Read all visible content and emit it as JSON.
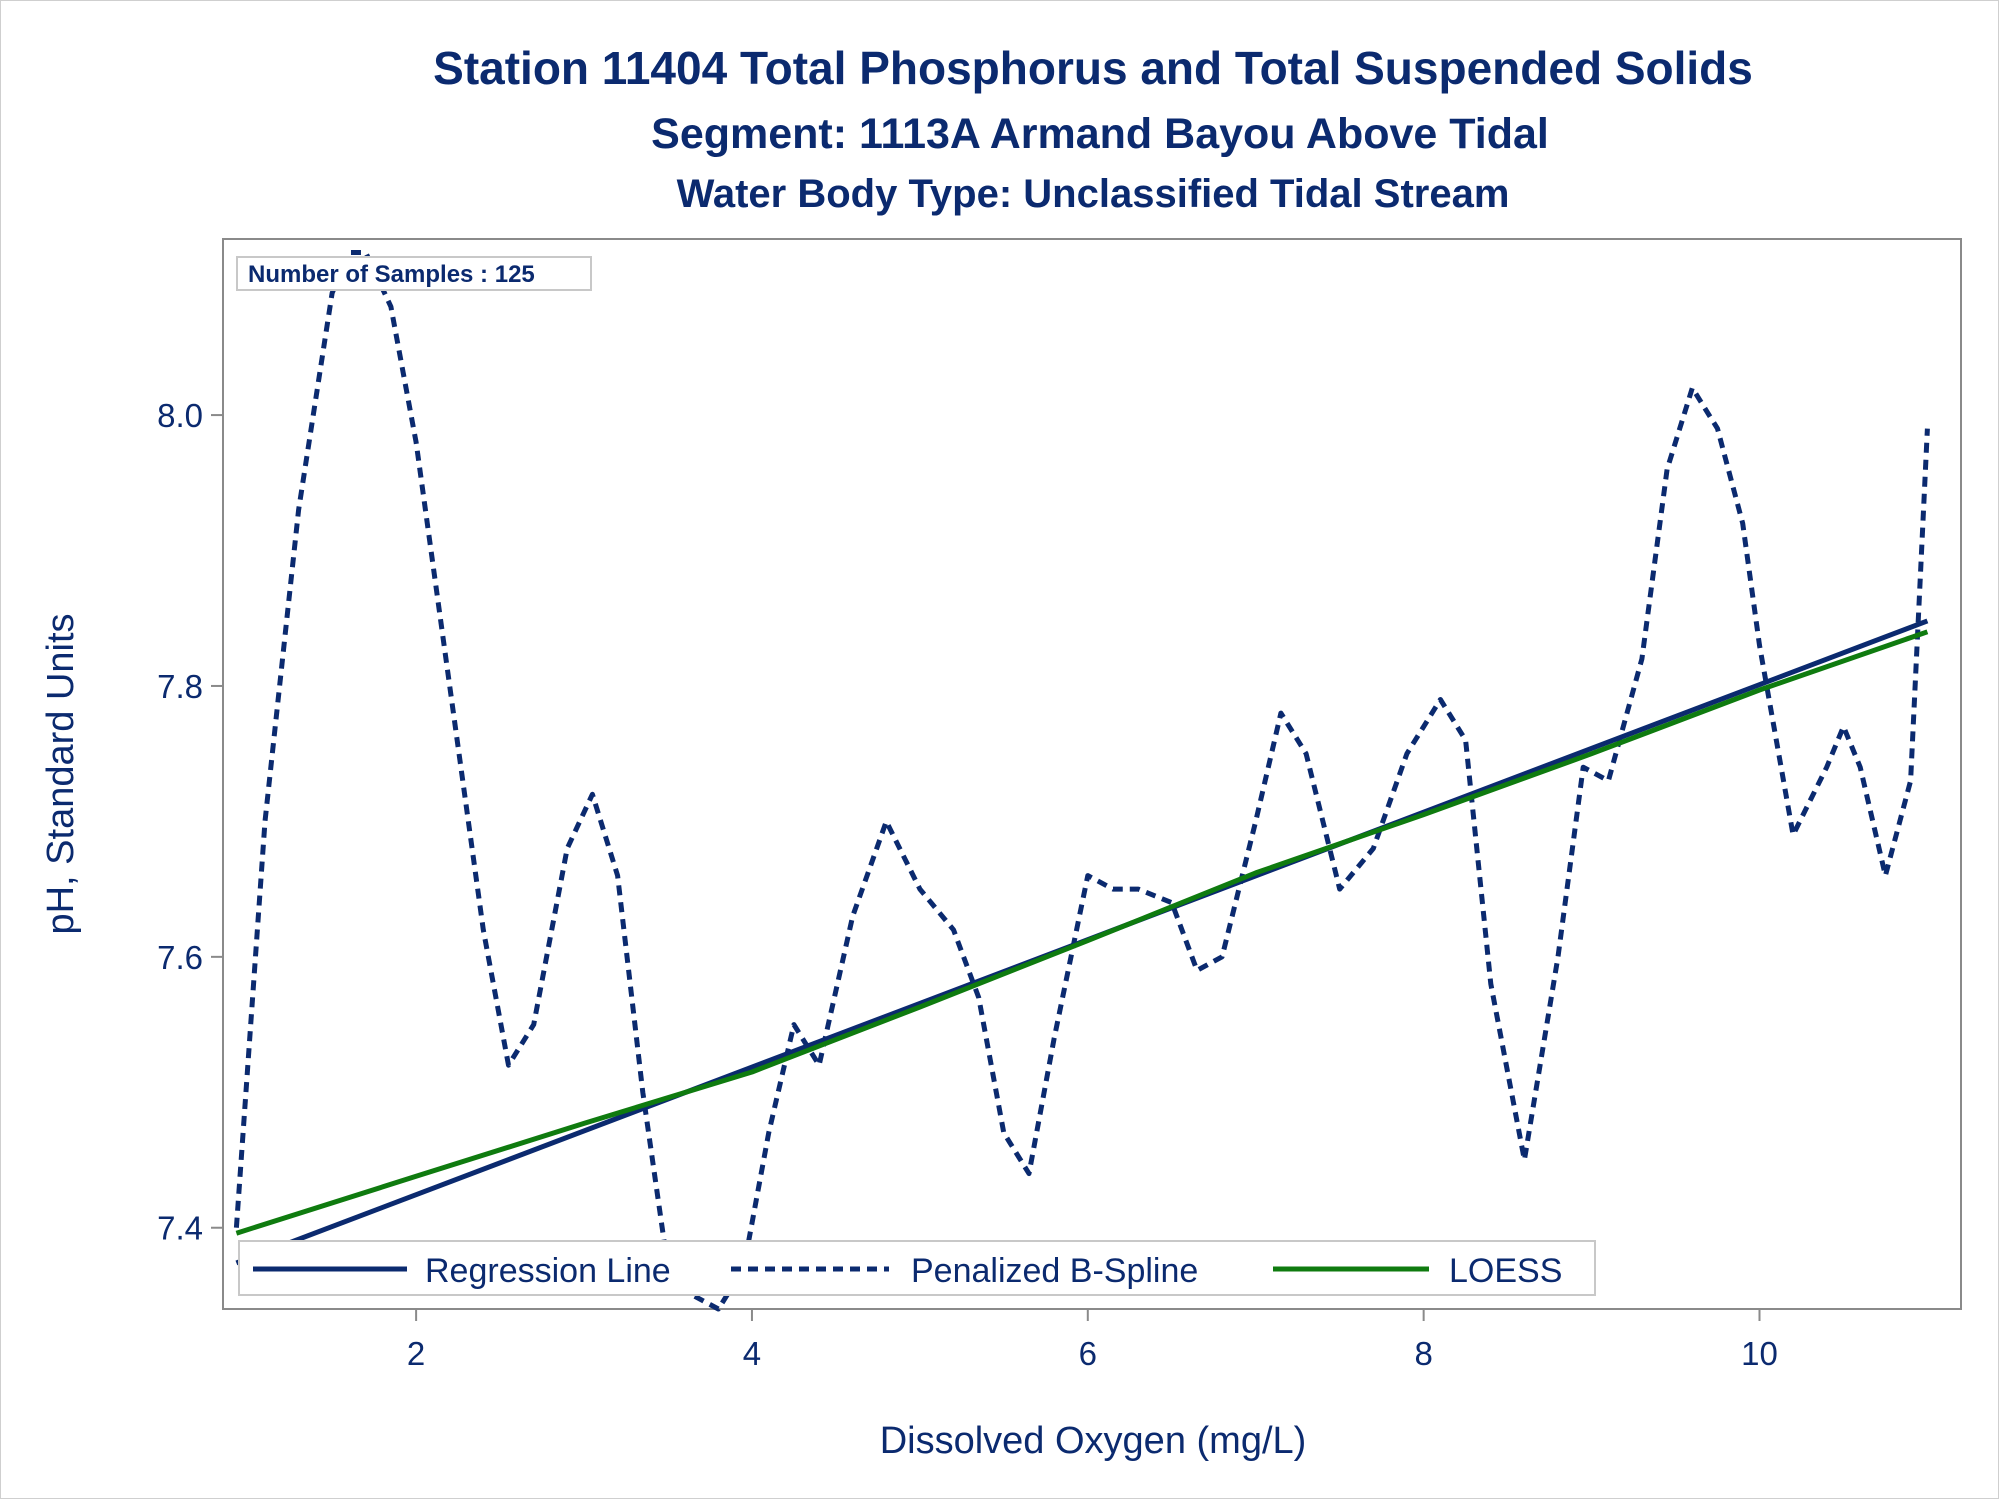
{
  "chart_data": {
    "type": "line",
    "title": "Station 11404  Total Phosphorus and Total Suspended Solids",
    "subtitle": "Segment: 1113A  Armand Bayou Above Tidal",
    "subtitle2": "Water Body Type: Unclassified Tidal Stream",
    "xlabel": "Dissolved Oxygen (mg/L)",
    "ylabel": "pH, Standard Units",
    "xlim": [
      0.85,
      11.2
    ],
    "ylim": [
      7.34,
      8.13
    ],
    "xticks": [
      2,
      4,
      6,
      8,
      10
    ],
    "yticks": [
      7.4,
      7.6,
      7.8,
      8.0
    ],
    "xtick_labels": [
      "2",
      "4",
      "6",
      "8",
      "10"
    ],
    "ytick_labels": [
      "7.4",
      "7.6",
      "7.8",
      "8.0"
    ],
    "grid": false,
    "legend_position": "bottom-inside",
    "inset_text": "Number of Samples : 125",
    "colors": {
      "regression": "#0b2a6f",
      "spline": "#0b2a6f",
      "loess": "#0f7b0f",
      "text": "#0b2a6f"
    },
    "series": [
      {
        "name": "Regression Line",
        "style": "solid",
        "x": [
          0.93,
          11.0
        ],
        "y": [
          7.374,
          7.848
        ]
      },
      {
        "name": "Penalized B-Spline",
        "style": "dashed",
        "x": [
          0.93,
          1.1,
          1.3,
          1.5,
          1.6,
          1.7,
          1.85,
          2.0,
          2.2,
          2.4,
          2.55,
          2.7,
          2.9,
          3.05,
          3.2,
          3.35,
          3.5,
          3.65,
          3.8,
          3.95,
          4.1,
          4.25,
          4.4,
          4.6,
          4.8,
          5.0,
          5.2,
          5.35,
          5.5,
          5.65,
          5.8,
          6.0,
          6.15,
          6.3,
          6.5,
          6.65,
          6.8,
          7.0,
          7.15,
          7.3,
          7.5,
          7.7,
          7.9,
          8.1,
          8.25,
          8.4,
          8.6,
          8.8,
          8.95,
          9.1,
          9.3,
          9.45,
          9.6,
          9.75,
          9.9,
          10.0,
          10.2,
          10.4,
          10.5,
          10.6,
          10.75,
          10.9,
          11.0
        ],
        "y": [
          7.4,
          7.7,
          7.93,
          8.09,
          8.12,
          8.12,
          8.08,
          7.98,
          7.8,
          7.62,
          7.52,
          7.55,
          7.68,
          7.72,
          7.66,
          7.5,
          7.37,
          7.35,
          7.34,
          7.37,
          7.47,
          7.55,
          7.52,
          7.63,
          7.7,
          7.65,
          7.62,
          7.57,
          7.47,
          7.44,
          7.54,
          7.66,
          7.65,
          7.65,
          7.64,
          7.59,
          7.6,
          7.7,
          7.78,
          7.75,
          7.65,
          7.68,
          7.75,
          7.79,
          7.76,
          7.58,
          7.45,
          7.6,
          7.74,
          7.73,
          7.82,
          7.96,
          8.02,
          7.99,
          7.92,
          7.83,
          7.69,
          7.74,
          7.77,
          7.74,
          7.66,
          7.73,
          7.99
        ]
      },
      {
        "name": "LOESS",
        "style": "solid",
        "x": [
          0.93,
          2.0,
          3.0,
          4.0,
          5.0,
          6.0,
          7.0,
          8.0,
          9.0,
          10.0,
          11.0
        ],
        "y": [
          7.396,
          7.438,
          7.477,
          7.515,
          7.563,
          7.612,
          7.662,
          7.705,
          7.75,
          7.797,
          7.84
        ]
      }
    ]
  }
}
